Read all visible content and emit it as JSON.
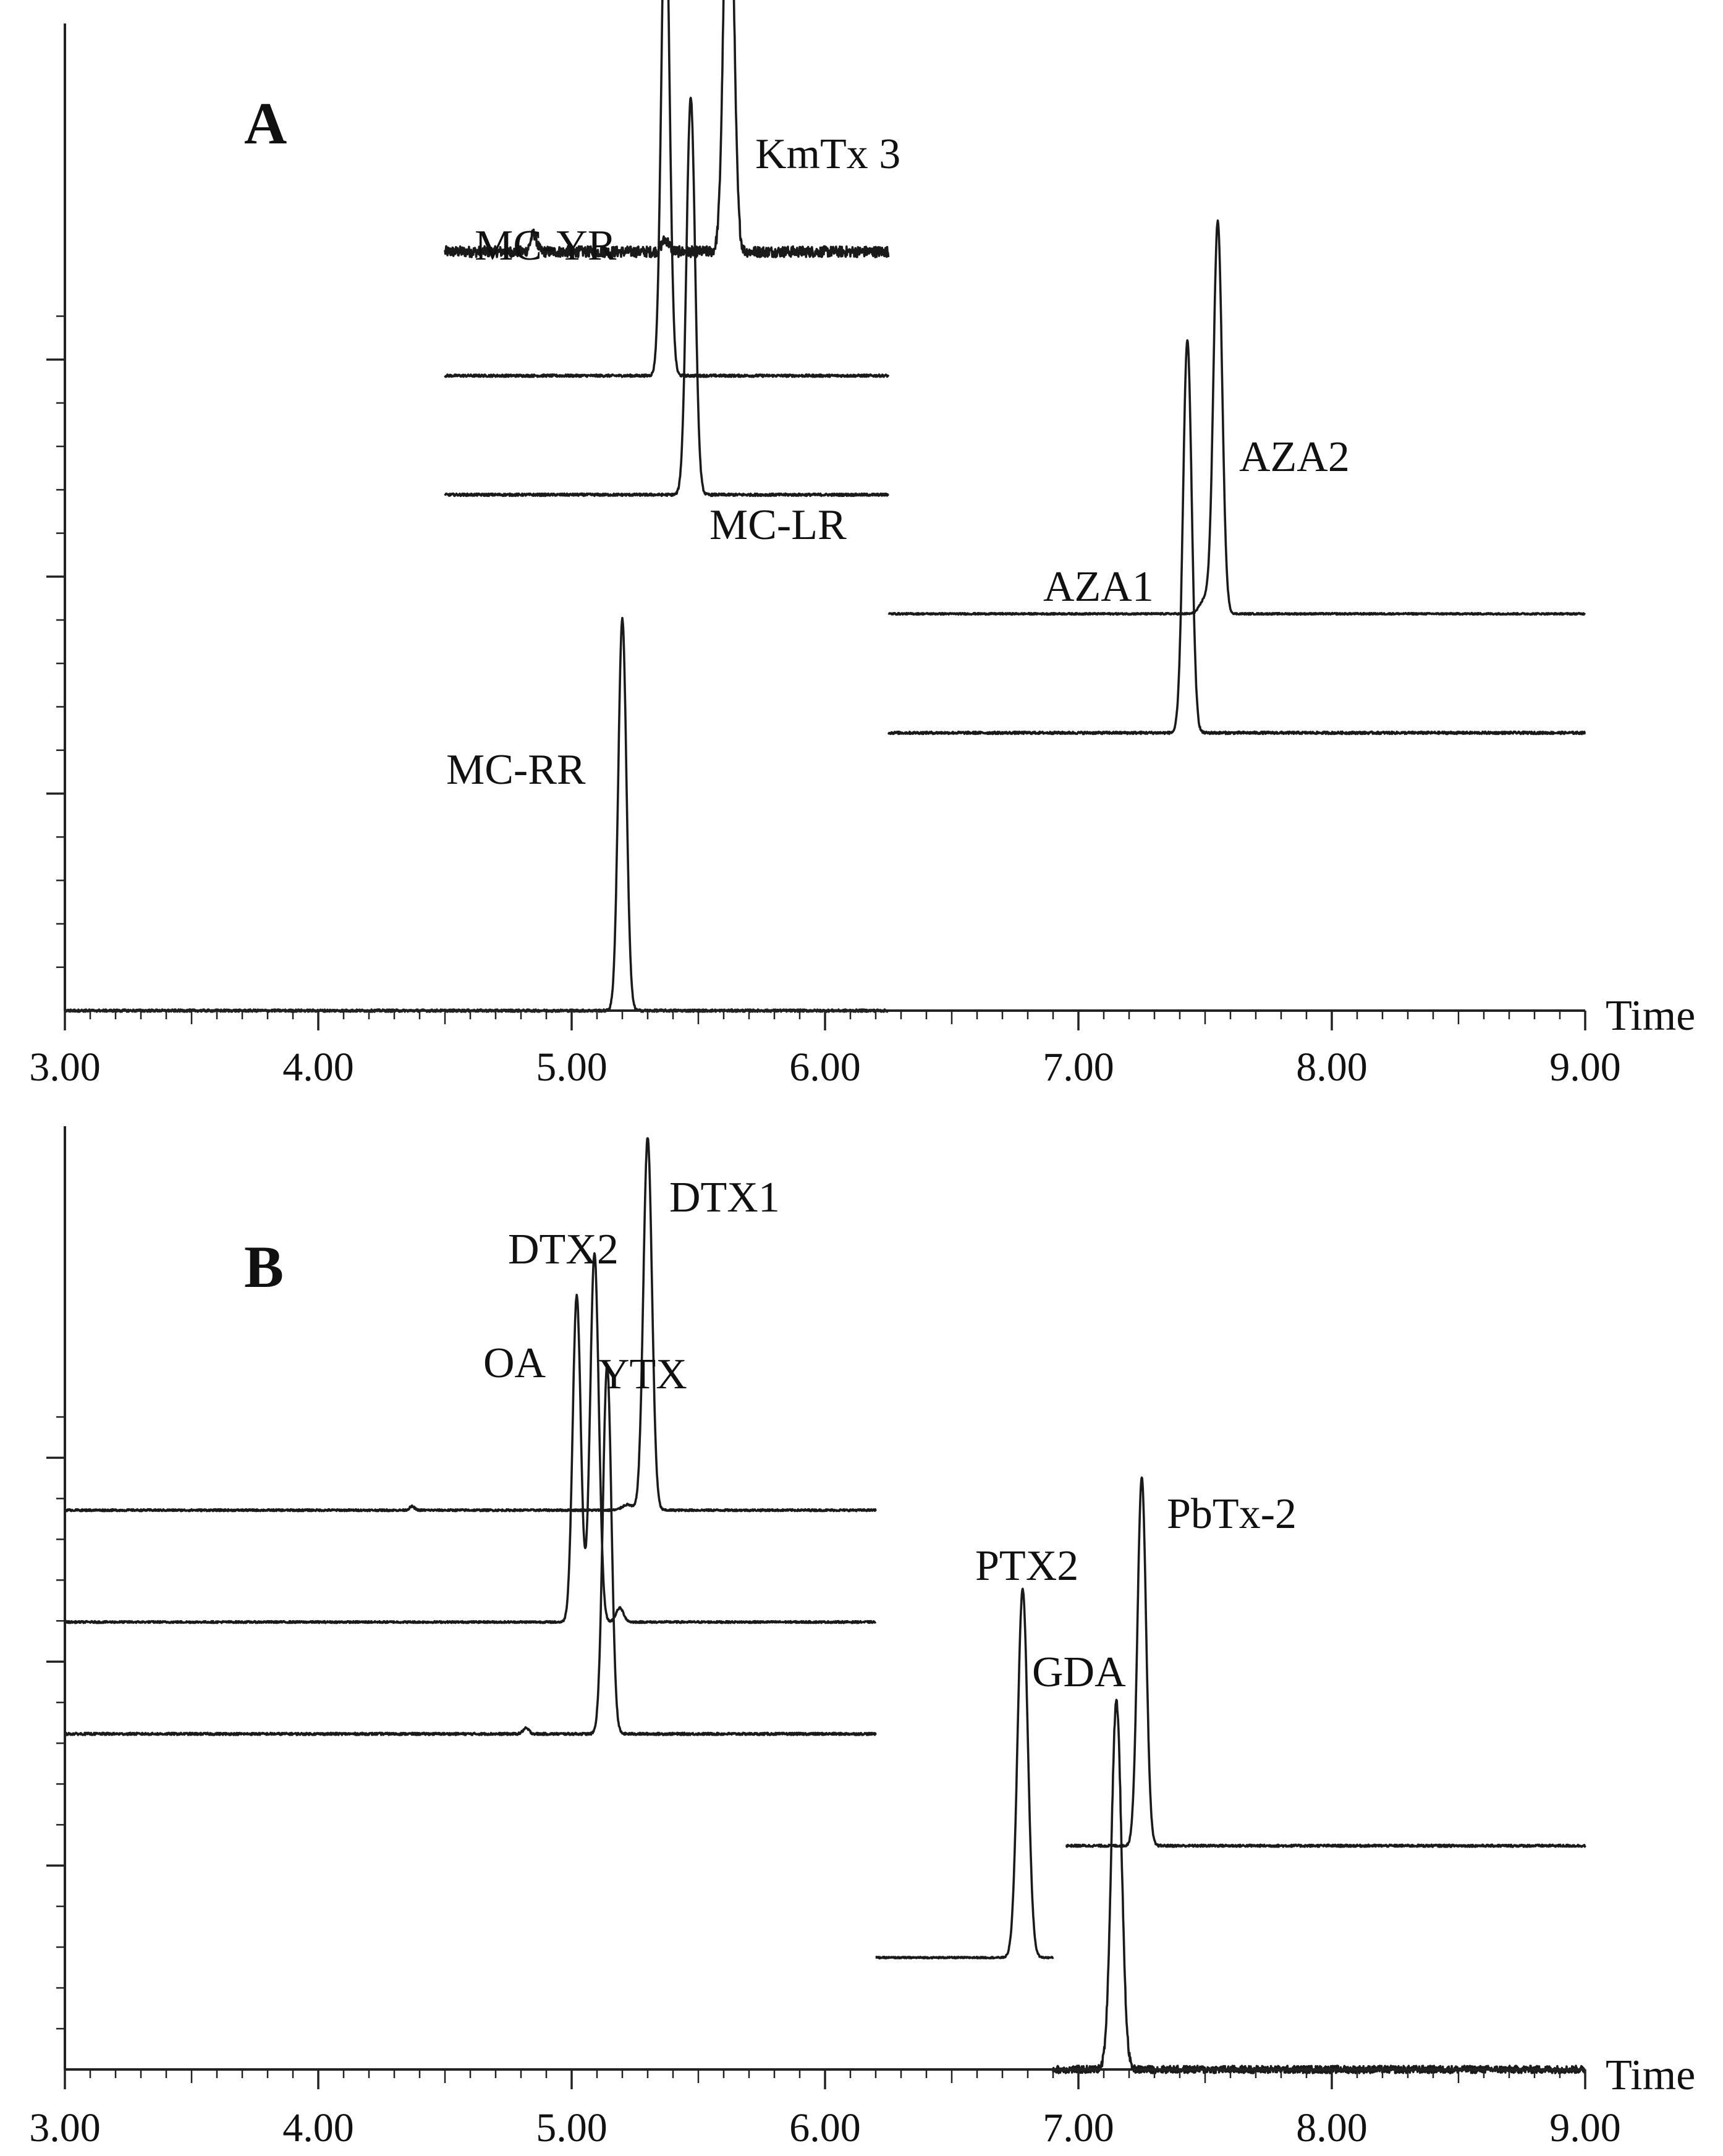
{
  "chart_data": [
    {
      "type": "line",
      "panel_label": "A",
      "xlabel": "Time",
      "xlim": [
        3.0,
        9.0
      ],
      "x_ticks": [
        "3.00",
        "4.00",
        "5.00",
        "6.00",
        "7.00",
        "8.00",
        "9.00"
      ],
      "series": [
        {
          "name": "KmTx 3",
          "x_range": [
            4.5,
            6.25
          ],
          "baseline": 0.765,
          "noise": 0.0055,
          "peaks": [
            {
              "x": 5.62,
              "h": 0.49,
              "w": 0.018
            },
            {
              "x": 5.37,
              "h": 0.012,
              "w": 0.015
            },
            {
              "x": 4.85,
              "h": 0.018,
              "w": 0.012
            }
          ]
        },
        {
          "name": "MC-YR",
          "x_range": [
            4.5,
            6.25
          ],
          "baseline": 0.64,
          "noise": 0.0012,
          "peaks": [
            {
              "x": 5.37,
              "h": 0.5,
              "w": 0.016
            }
          ]
        },
        {
          "name": "MC-LR",
          "x_range": [
            4.5,
            6.25
          ],
          "baseline": 0.52,
          "noise": 0.0012,
          "peaks": [
            {
              "x": 5.47,
              "h": 0.4,
              "w": 0.017
            }
          ]
        },
        {
          "name": "MC-RR",
          "x_range": [
            3.0,
            6.25
          ],
          "baseline": 0.0,
          "noise": 0.0012,
          "peaks": [
            {
              "x": 5.2,
              "h": 0.395,
              "w": 0.016
            }
          ]
        },
        {
          "name": "AZA2",
          "x_range": [
            6.25,
            9.0
          ],
          "baseline": 0.4,
          "noise": 0.0008,
          "peaks": [
            {
              "x": 7.55,
              "h": 0.395,
              "w": 0.017
            },
            {
              "x": 7.5,
              "h": 0.015,
              "w": 0.02
            }
          ]
        },
        {
          "name": "AZA1",
          "x_range": [
            6.25,
            9.0
          ],
          "baseline": 0.28,
          "noise": 0.0012,
          "peaks": [
            {
              "x": 7.43,
              "h": 0.395,
              "w": 0.017
            }
          ]
        }
      ],
      "annotations": [
        "KmTx 3",
        "MC-YR",
        "MC-LR",
        "MC-RR",
        "AZA2",
        "AZA1"
      ]
    },
    {
      "type": "line",
      "panel_label": "B",
      "xlabel": "Time",
      "xlim": [
        3.0,
        9.0
      ],
      "x_ticks": [
        "3.00",
        "4.00",
        "5.00",
        "6.00",
        "7.00",
        "8.00",
        "9.00"
      ],
      "series": [
        {
          "name": "DTX1",
          "x_range": [
            3.0,
            6.2
          ],
          "baseline": 0.6,
          "noise": 0.001,
          "peaks": [
            {
              "x": 5.3,
              "h": 0.4,
              "w": 0.017
            },
            {
              "x": 5.22,
              "h": 0.006,
              "w": 0.02
            },
            {
              "x": 4.37,
              "h": 0.004,
              "w": 0.01
            }
          ]
        },
        {
          "name": "DTX2",
          "x_range": [
            3.0,
            6.2
          ],
          "baseline": 0.48,
          "noise": 0.001,
          "peaks": [
            {
              "x": 5.09,
              "h": 0.395,
              "w": 0.017
            },
            {
              "x": 5.02,
              "h": 0.35,
              "w": 0.016
            },
            {
              "x": 5.19,
              "h": 0.015,
              "w": 0.015
            }
          ]
        },
        {
          "name": "YTX",
          "x_range": [
            3.0,
            6.2
          ],
          "baseline": 0.36,
          "noise": 0.0012,
          "peaks": [
            {
              "x": 5.14,
              "h": 0.395,
              "w": 0.017
            },
            {
              "x": 4.82,
              "h": 0.006,
              "w": 0.012
            }
          ]
        },
        {
          "name": "PbTx-2",
          "x_range": [
            6.95,
            9.0
          ],
          "baseline": 0.24,
          "noise": 0.0012,
          "peaks": [
            {
              "x": 7.25,
              "h": 0.395,
              "w": 0.017
            }
          ]
        },
        {
          "name": "PTX2",
          "x_range": [
            6.2,
            6.9
          ],
          "baseline": 0.12,
          "noise": 0.0008,
          "peaks": [
            {
              "x": 6.78,
              "h": 0.395,
              "w": 0.02
            }
          ]
        },
        {
          "name": "GDA",
          "x_range": [
            6.9,
            9.0
          ],
          "baseline": 0.0,
          "noise": 0.004,
          "peaks": [
            {
              "x": 7.15,
              "h": 0.395,
              "w": 0.02
            }
          ]
        }
      ],
      "annotations": [
        "OA",
        "DTX2",
        "DTX1",
        "YTX",
        "PbTx-2",
        "PTX2",
        "GDA"
      ]
    }
  ],
  "text": {
    "panelA": {
      "label": "A",
      "time": "Time",
      "ticks": [
        "3.00",
        "4.00",
        "5.00",
        "6.00",
        "7.00",
        "8.00",
        "9.00"
      ],
      "peaks": {
        "kmtx3": "KmTx 3",
        "mcyr": "MC-YR",
        "mclr": "MC-LR",
        "mcrr": "MC-RR",
        "aza2": "AZA2",
        "aza1": "AZA1"
      }
    },
    "panelB": {
      "label": "B",
      "time": "Time",
      "ticks": [
        "3.00",
        "4.00",
        "5.00",
        "6.00",
        "7.00",
        "8.00",
        "9.00"
      ],
      "peaks": {
        "oa": "OA",
        "dtx2": "DTX2",
        "dtx1": "DTX1",
        "ytx": "YTX",
        "pbtx2": "PbTx-2",
        "ptx2": "PTX2",
        "gda": "GDA"
      }
    }
  }
}
